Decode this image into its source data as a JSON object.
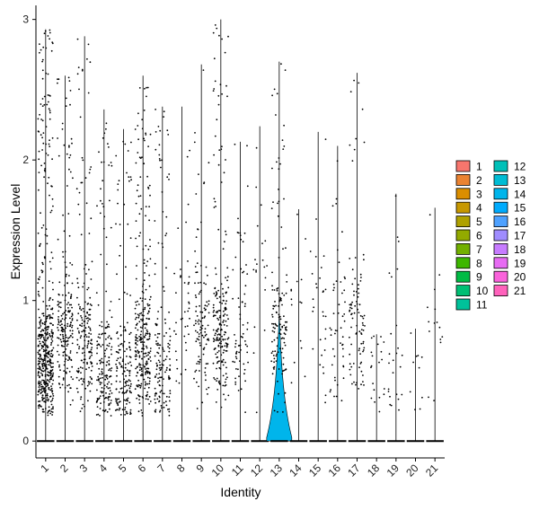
{
  "chart_data": {
    "type": "violin",
    "xlabel": "Identity",
    "ylabel": "Expression Level",
    "ylim": [
      -0.12,
      3.1
    ],
    "yticks": [
      "0",
      "1",
      "2",
      "3"
    ],
    "categories": [
      "1",
      "2",
      "3",
      "4",
      "5",
      "6",
      "7",
      "8",
      "9",
      "10",
      "11",
      "12",
      "13",
      "14",
      "15",
      "16",
      "17",
      "18",
      "19",
      "20",
      "21"
    ],
    "max_values": [
      2.93,
      2.6,
      2.88,
      2.36,
      2.22,
      2.6,
      2.38,
      2.38,
      2.68,
      3.0,
      2.13,
      2.24,
      2.7,
      1.65,
      2.2,
      2.1,
      2.62,
      0.76,
      1.76,
      0.8,
      1.66
    ],
    "point_density": [
      480,
      200,
      180,
      170,
      160,
      280,
      150,
      40,
      110,
      200,
      70,
      20,
      130,
      15,
      30,
      50,
      90,
      20,
      25,
      10,
      15
    ],
    "point_centers": [
      0.55,
      0.75,
      0.7,
      0.5,
      0.4,
      0.65,
      0.5,
      0.9,
      0.8,
      0.8,
      0.7,
      1.2,
      0.8,
      1.0,
      0.9,
      0.7,
      0.8,
      0.5,
      0.5,
      0.6,
      0.9
    ],
    "colors": [
      "#F8766D",
      "#EA8331",
      "#DB8E00",
      "#C79800",
      "#AFA100",
      "#93AA00",
      "#72B000",
      "#3DB700",
      "#00BB44",
      "#00BF74",
      "#00C19A",
      "#00C0B8",
      "#00BCD4",
      "#00B5EB",
      "#00ABFD",
      "#4EA1FF",
      "#9F8CFF",
      "#C77CFF",
      "#E76BF3",
      "#FA62DB",
      "#FF62BC"
    ],
    "violin_13_fill": "#00B5EB",
    "legend_position": "right"
  }
}
